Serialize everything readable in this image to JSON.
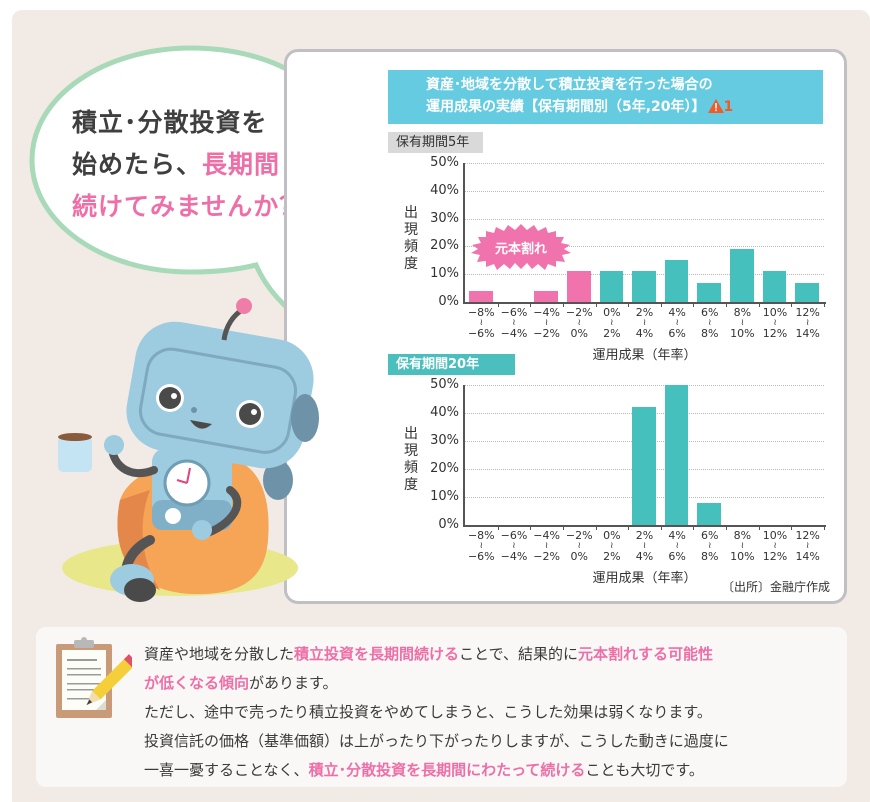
{
  "bubble": {
    "line1": "積立･分散投資を",
    "line2_plain": "始めたら、",
    "line2_pink": "長期間",
    "line3_pink": "続けてみませんか？"
  },
  "chart_header": {
    "title_line1": "資産･地域を分散して積立投資を行った場合の",
    "title_line2": "運用成果の実績【保有期間別（5年,20年）】",
    "warning_icon": "warning-triangle-icon",
    "footnote_number": "1"
  },
  "chart_labels": {
    "ylabel": [
      "出",
      "現",
      "頻",
      "度"
    ],
    "xlabel": "運用成果（年率）",
    "loss_badge": "元本割れ",
    "source": "〔出所〕金融庁作成",
    "yticks": [
      "50%",
      "40%",
      "30%",
      "20%",
      "10%",
      "0%"
    ],
    "xcats_top": [
      "−8%",
      "−6%",
      "−4%",
      "−2%",
      "0%",
      "2%",
      "4%",
      "6%",
      "8%",
      "10%",
      "12%"
    ],
    "xcats_tilde": "≀",
    "xcats_bottom": [
      "−6%",
      "−4%",
      "−2%",
      "0%",
      "2%",
      "4%",
      "6%",
      "8%",
      "10%",
      "12%",
      "14%"
    ]
  },
  "colors": {
    "loss_bar": "#f173ad",
    "gain_bar": "#45c0bd",
    "header_bg": "#64cbe1",
    "accent_pink": "#ee6fa7",
    "period20_bg": "#4bbfbd",
    "period5_bg": "#d9d9d9"
  },
  "chart_data": [
    {
      "type": "bar",
      "title": "保有期間5年",
      "xlabel": "運用成果（年率）",
      "ylabel": "出現頻度",
      "ylim": [
        0,
        50
      ],
      "yticks": [
        0,
        10,
        20,
        30,
        40,
        50
      ],
      "grid": true,
      "categories": [
        "-8%~-6%",
        "-6%~-4%",
        "-4%~-2%",
        "-2%~0%",
        "0%~2%",
        "2%~4%",
        "4%~6%",
        "6%~8%",
        "8%~10%",
        "10%~12%",
        "12%~14%"
      ],
      "values": [
        4,
        0,
        4,
        11,
        11,
        11,
        15,
        7,
        19,
        11,
        7
      ],
      "annotations": [
        "元本割れ (loss region: -8% to 0%, pink bars)"
      ]
    },
    {
      "type": "bar",
      "title": "保有期間20年",
      "xlabel": "運用成果（年率）",
      "ylabel": "出現頻度",
      "ylim": [
        0,
        50
      ],
      "yticks": [
        0,
        10,
        20,
        30,
        40,
        50
      ],
      "grid": true,
      "categories": [
        "-8%~-6%",
        "-6%~-4%",
        "-4%~-2%",
        "-2%~0%",
        "0%~2%",
        "2%~4%",
        "4%~6%",
        "6%~8%",
        "8%~10%",
        "10%~12%",
        "12%~14%"
      ],
      "values": [
        0,
        0,
        0,
        0,
        0,
        42,
        50,
        8,
        0,
        0,
        0
      ]
    }
  ],
  "periods": {
    "five": "保有期間5年",
    "twenty": "保有期間20年"
  },
  "note": {
    "icon": "clipboard-pencil-icon",
    "l1a": "資産や地域を分散した",
    "l1b": "積立投資を長期間続ける",
    "l1c": "ことで、結果的に",
    "l1d": "元本割れする可能性",
    "l2a": "が低くなる傾向",
    "l2b": "があります。",
    "l3": "ただし、途中で売ったり積立投資をやめてしまうと、こうした効果は弱くなります。",
    "l4": "投資信託の価格（基準価額）は上がったり下がったりしますが、こうした動きに過度に",
    "l5a": "一喜一憂することなく、",
    "l5b": "積立･分散投資を長期間にわたって続ける",
    "l5c": "ことも大切です。"
  }
}
